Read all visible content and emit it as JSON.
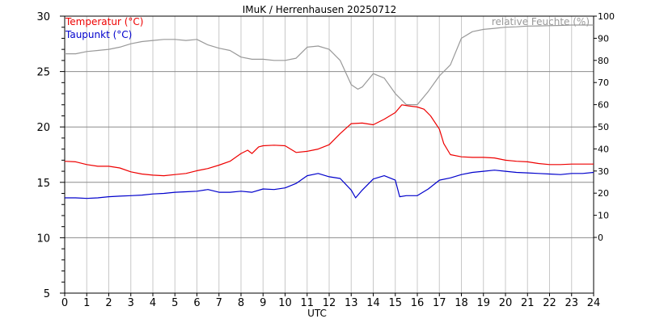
{
  "chart_data": {
    "type": "line",
    "title": "IMuK / Herrenhausen 20250712",
    "xlabel": "UTC",
    "x_ticks": [
      0,
      1,
      2,
      3,
      4,
      5,
      6,
      7,
      8,
      9,
      10,
      11,
      12,
      13,
      14,
      15,
      16,
      17,
      18,
      19,
      20,
      21,
      22,
      23,
      24
    ],
    "xlim": [
      0,
      24
    ],
    "y_left": {
      "ticks": [
        5,
        10,
        15,
        20,
        25,
        30
      ],
      "ylim": [
        5,
        30
      ],
      "minor_step": 1
    },
    "y_right": {
      "ticks": [
        0,
        10,
        20,
        30,
        40,
        50,
        60,
        70,
        80,
        90,
        100
      ]
    },
    "grid": true,
    "legend": [
      {
        "label": "Temperatur (°C)",
        "color": "#ee0000",
        "position": "top-left"
      },
      {
        "label": "Taupunkt (°C)",
        "color": "#0000cc",
        "position": "top-left"
      },
      {
        "label": "relative Feuchte (%)",
        "color": "#999999",
        "position": "top-right"
      }
    ],
    "series": [
      {
        "name": "Temperatur (°C)",
        "axis": "left",
        "color": "#ee0000",
        "x": [
          0,
          0.5,
          1,
          1.5,
          2,
          2.5,
          3,
          3.5,
          4,
          4.5,
          5,
          5.5,
          6,
          6.5,
          7,
          7.5,
          8,
          8.3,
          8.5,
          8.8,
          9,
          9.5,
          10,
          10.5,
          11,
          11.5,
          12,
          12.5,
          13,
          13.5,
          14,
          14.5,
          15,
          15.3,
          15.6,
          16,
          16.3,
          16.6,
          17,
          17.2,
          17.5,
          18,
          18.5,
          19,
          19.5,
          20,
          20.5,
          21,
          21.5,
          22,
          22.5,
          23,
          23.5,
          24
        ],
        "values": [
          16.9,
          16.85,
          16.6,
          16.45,
          16.45,
          16.3,
          15.95,
          15.75,
          15.65,
          15.6,
          15.7,
          15.8,
          16.05,
          16.25,
          16.55,
          16.9,
          17.6,
          17.9,
          17.6,
          18.2,
          18.3,
          18.35,
          18.3,
          17.7,
          17.8,
          18.0,
          18.4,
          19.4,
          20.3,
          20.35,
          20.2,
          20.7,
          21.3,
          22.0,
          21.9,
          21.8,
          21.6,
          21.0,
          19.8,
          18.5,
          17.5,
          17.3,
          17.25,
          17.25,
          17.2,
          17.0,
          16.9,
          16.85,
          16.7,
          16.6,
          16.6,
          16.65,
          16.65,
          16.65
        ]
      },
      {
        "name": "Taupunkt (°C)",
        "axis": "left",
        "color": "#0000cc",
        "x": [
          0,
          0.5,
          1,
          1.5,
          2,
          2.5,
          3,
          3.5,
          4,
          4.5,
          5,
          5.5,
          6,
          6.5,
          7,
          7.5,
          8,
          8.5,
          9,
          9.5,
          10,
          10.5,
          11,
          11.5,
          12,
          12.5,
          13,
          13.2,
          13.5,
          14,
          14.5,
          15,
          15.2,
          15.5,
          16,
          16.5,
          17,
          17.5,
          18,
          18.5,
          19,
          19.5,
          20,
          20.5,
          21,
          21.5,
          22,
          22.5,
          23,
          23.5,
          24
        ],
        "values": [
          13.6,
          13.6,
          13.55,
          13.6,
          13.7,
          13.75,
          13.8,
          13.85,
          13.95,
          14.0,
          14.1,
          14.15,
          14.2,
          14.35,
          14.1,
          14.1,
          14.2,
          14.1,
          14.4,
          14.35,
          14.5,
          14.9,
          15.6,
          15.8,
          15.5,
          15.35,
          14.3,
          13.6,
          14.3,
          15.3,
          15.6,
          15.2,
          13.7,
          13.8,
          13.8,
          14.4,
          15.2,
          15.4,
          15.7,
          15.9,
          16.0,
          16.1,
          16.0,
          15.9,
          15.85,
          15.8,
          15.75,
          15.7,
          15.8,
          15.8,
          15.9
        ]
      },
      {
        "name": "relative Feuchte (%)",
        "axis": "right",
        "color": "#999999",
        "x": [
          0,
          0.5,
          1,
          1.5,
          2,
          2.5,
          3,
          3.5,
          4,
          4.5,
          5,
          5.5,
          6,
          6.5,
          7,
          7.5,
          8,
          8.5,
          9,
          9.5,
          10,
          10.5,
          11,
          11.5,
          12,
          12.5,
          13,
          13.3,
          13.5,
          14,
          14.5,
          15,
          15.3,
          15.5,
          16,
          16.5,
          17,
          17.5,
          18,
          18.5,
          19,
          19.5,
          20,
          20.5,
          21,
          21.5,
          22,
          22.5,
          23,
          23.5,
          24
        ],
        "values": [
          83,
          83,
          84,
          84.5,
          85,
          86,
          87.5,
          88.5,
          89,
          89.5,
          89.5,
          89,
          89.5,
          87,
          85.5,
          84.5,
          81.5,
          80.5,
          80.5,
          80,
          80,
          81,
          86,
          86.5,
          85,
          80,
          69,
          67,
          68,
          74,
          72,
          65,
          62,
          60,
          60,
          66,
          73,
          78,
          90,
          93,
          94,
          94.5,
          95,
          95.2,
          95.5,
          95.6,
          95.7,
          95.8,
          96,
          96,
          96
        ]
      }
    ]
  }
}
